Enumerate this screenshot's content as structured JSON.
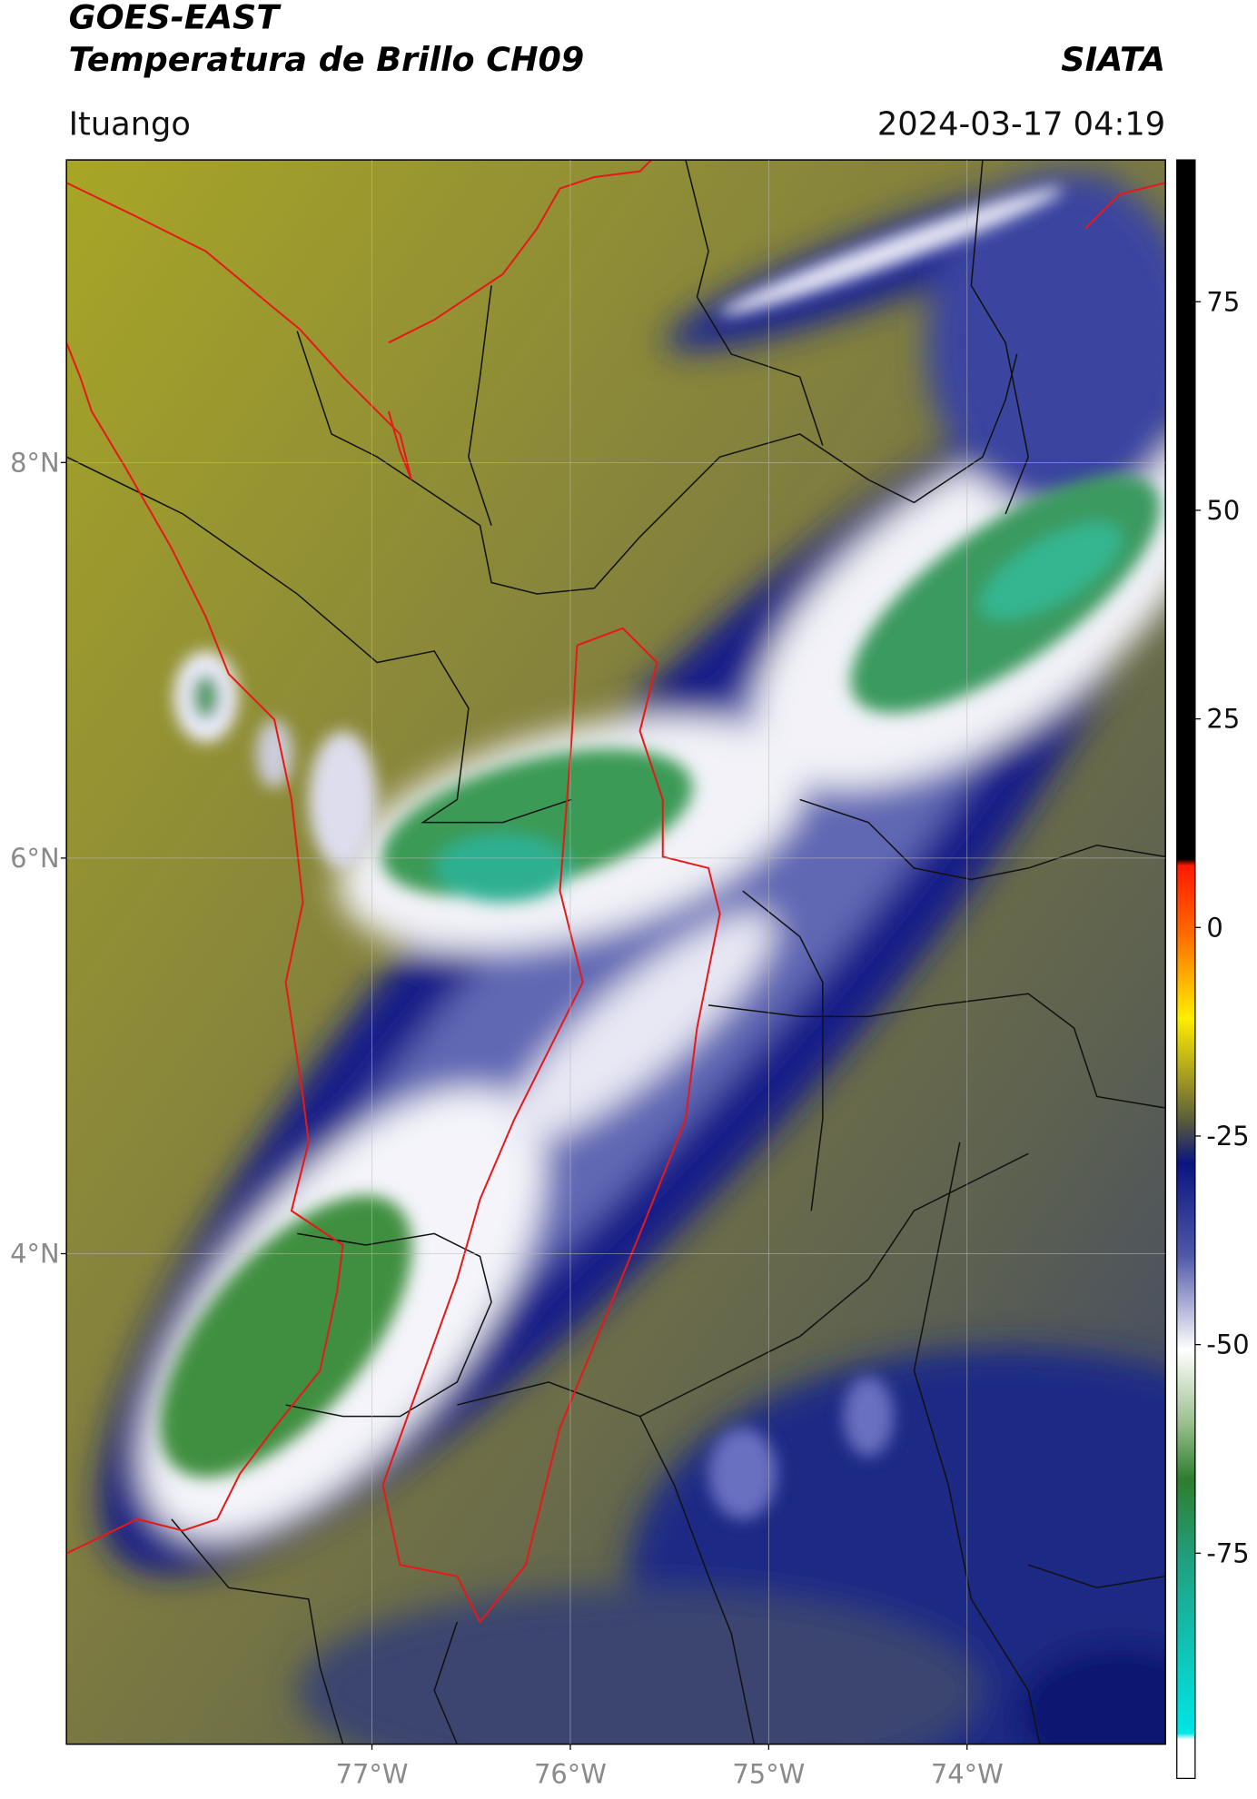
{
  "header": {
    "title": "GOES-EAST",
    "subtitle": "Temperatura de Brillo CH09",
    "source": "SIATA",
    "location": "Ituango",
    "datetime": "2024-03-17 04:19"
  },
  "map": {
    "xlim": [
      -78.54,
      -73.0
    ],
    "ylim": [
      1.52,
      9.53
    ],
    "xticks": [
      {
        "value": -77,
        "label": "77°W"
      },
      {
        "value": -76,
        "label": "76°W"
      },
      {
        "value": -75,
        "label": "75°W"
      },
      {
        "value": -74,
        "label": "74°W"
      }
    ],
    "yticks": [
      {
        "value": 8,
        "label": "8°N"
      },
      {
        "value": 6,
        "label": "6°N"
      },
      {
        "value": 4,
        "label": "4°N"
      }
    ]
  },
  "colorbar": {
    "ylim": [
      -102,
      92
    ],
    "yticks": [
      75,
      50,
      25,
      0,
      -25,
      -50,
      -75
    ]
  }
}
